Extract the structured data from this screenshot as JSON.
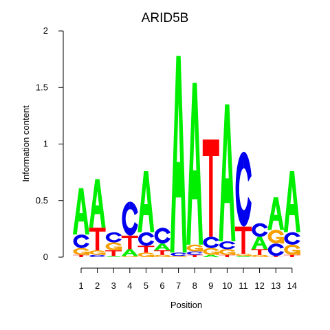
{
  "chart_data": {
    "type": "sequence-logo",
    "title": "ARID5B",
    "xlabel": "Position",
    "ylabel": "Information content",
    "ylim": [
      0,
      2
    ],
    "y_ticks": [
      "0",
      "0.5",
      "1",
      "1.5",
      "2"
    ],
    "y_tick_values": [
      0,
      0.5,
      1,
      1.5,
      2
    ],
    "x_ticks": [
      "1",
      "2",
      "3",
      "4",
      "5",
      "6",
      "7",
      "8",
      "9",
      "10",
      "11",
      "12",
      "13",
      "14"
    ],
    "colors": {
      "A": "#00ee00",
      "C": "#0000ee",
      "G": "#f5a000",
      "T": "#ff0000"
    },
    "positions": [
      [
        [
          "T",
          0.02
        ],
        [
          "G",
          0.06
        ],
        [
          "C",
          0.12
        ],
        [
          "A",
          0.41
        ]
      ],
      [
        [
          "C",
          0.02
        ],
        [
          "G",
          0.04
        ],
        [
          "T",
          0.2
        ],
        [
          "A",
          0.43
        ]
      ],
      [
        [
          "A",
          0.01
        ],
        [
          "T",
          0.05
        ],
        [
          "G",
          0.07
        ],
        [
          "C",
          0.09
        ]
      ],
      [
        [
          "G",
          0.01
        ],
        [
          "A",
          0.06
        ],
        [
          "T",
          0.12
        ],
        [
          "C",
          0.3
        ]
      ],
      [
        [
          "G",
          0.04
        ],
        [
          "T",
          0.06
        ],
        [
          "C",
          0.12
        ],
        [
          "A",
          0.54
        ]
      ],
      [
        [
          "G",
          0.02
        ],
        [
          "T",
          0.04
        ],
        [
          "A",
          0.06
        ],
        [
          "C",
          0.14
        ]
      ],
      [
        [
          "G",
          0.01
        ],
        [
          "C",
          0.03
        ],
        [
          "A",
          1.74
        ]
      ],
      [
        [
          "T",
          0.02
        ],
        [
          "C",
          0.03
        ],
        [
          "G",
          0.06
        ],
        [
          "A",
          1.43
        ]
      ],
      [
        [
          "A",
          0.02
        ],
        [
          "G",
          0.06
        ],
        [
          "C",
          0.1
        ],
        [
          "T",
          0.86
        ]
      ],
      [
        [
          "T",
          0.02
        ],
        [
          "G",
          0.05
        ],
        [
          "C",
          0.07
        ],
        [
          "A",
          1.21
        ]
      ],
      [
        [
          "A",
          0.01
        ],
        [
          "G",
          0.02
        ],
        [
          "T",
          0.24
        ],
        [
          "C",
          0.66
        ]
      ],
      [
        [
          "G",
          0.02
        ],
        [
          "T",
          0.05
        ],
        [
          "A",
          0.11
        ],
        [
          "C",
          0.12
        ]
      ],
      [
        [
          "T",
          0.01
        ],
        [
          "C",
          0.11
        ],
        [
          "G",
          0.12
        ],
        [
          "A",
          0.29
        ]
      ],
      [
        [
          "T",
          0.02
        ],
        [
          "G",
          0.09
        ],
        [
          "C",
          0.11
        ],
        [
          "A",
          0.54
        ]
      ]
    ]
  }
}
